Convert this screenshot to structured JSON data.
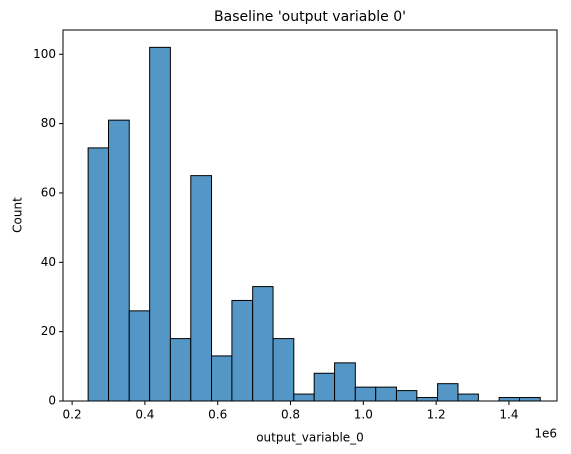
{
  "chart_data": {
    "type": "histogram",
    "title": "Baseline 'output variable 0'",
    "x_label": "output_variable_0",
    "y_label": "Count",
    "x_offset_label": "1e6",
    "bins": [
      0.244,
      0.3,
      0.357,
      0.413,
      0.47,
      0.526,
      0.583,
      0.639,
      0.696,
      0.752,
      0.809,
      0.865,
      0.921,
      0.978,
      1.034,
      1.091,
      1.147,
      1.204,
      1.26,
      1.316,
      1.373,
      1.429,
      1.486
    ],
    "values": [
      73,
      81,
      26,
      102,
      18,
      65,
      13,
      29,
      33,
      18,
      2,
      8,
      11,
      4,
      4,
      3,
      1,
      5,
      2,
      0,
      1,
      1
    ],
    "color": "#5497c6",
    "edgecolor": "#000000",
    "xlim": [
      0.175,
      1.532
    ],
    "ylim": [
      0,
      107
    ],
    "xticks": [
      0.2,
      0.4,
      0.6,
      0.8,
      {
        "value": 1,
        "label": "1.0"
      },
      1.2,
      1.4
    ],
    "yticks": [
      0,
      20,
      40,
      60,
      80,
      100
    ]
  }
}
